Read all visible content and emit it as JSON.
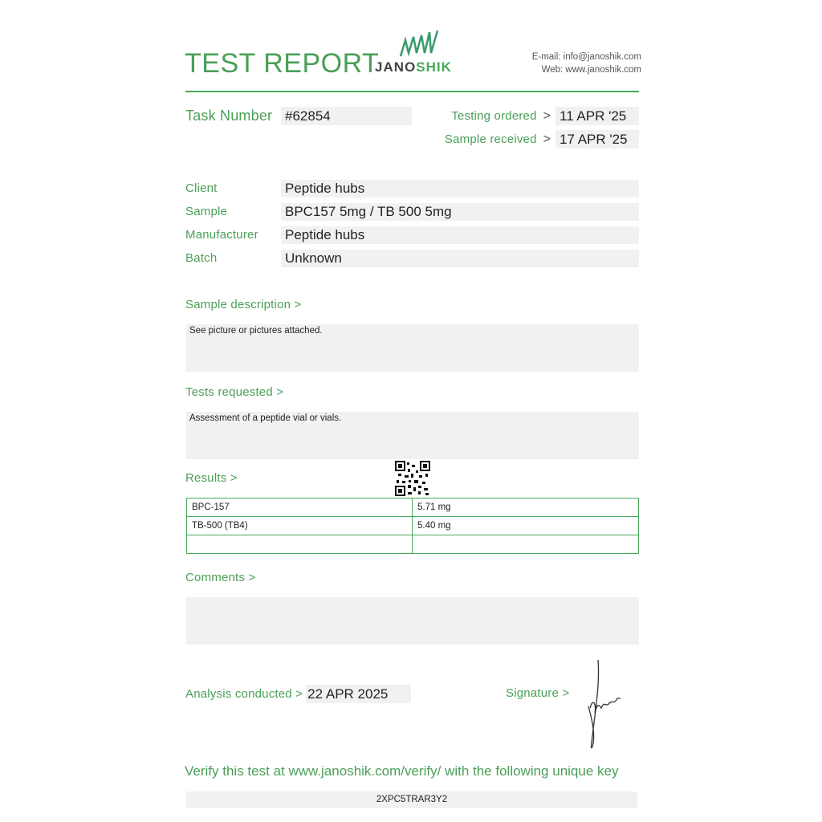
{
  "header": {
    "title": "TEST REPORT",
    "logo_text": "JANOSHIK",
    "logo_text_dark": "JANO",
    "logo_text_green": "SHIK",
    "email": "E-mail: info@janoshik.com",
    "web": "Web: www.janoshik.com",
    "accent": "#4a9f57"
  },
  "task": {
    "label": "Task Number",
    "value": "#62854"
  },
  "dates": {
    "ordered_label": "Testing ordered",
    "ordered_value": "11 APR '25",
    "received_label": "Sample received",
    "received_value": "17 APR '25",
    "arrow": ">"
  },
  "info": [
    {
      "label": "Client",
      "value": "Peptide hubs"
    },
    {
      "label": "Sample",
      "value": "BPC157 5mg / TB 500 5mg"
    },
    {
      "label": "Manufacturer",
      "value": "Peptide hubs"
    },
    {
      "label": "Batch",
      "value": "Unknown"
    }
  ],
  "sample_description": {
    "label": "Sample description >",
    "text": "See picture or pictures attached."
  },
  "tests_requested": {
    "label": "Tests requested >",
    "text": "Assessment of a peptide vial or vials."
  },
  "results": {
    "label": "Results >",
    "rows": [
      [
        "BPC-157",
        "5.71 mg"
      ],
      [
        "TB-500 (TB4)",
        "5.40 mg"
      ],
      [
        "",
        ""
      ]
    ]
  },
  "comments": {
    "label": "Comments >",
    "text": ""
  },
  "analysis": {
    "label": "Analysis conducted >",
    "value": "22 APR 2025"
  },
  "signature": {
    "label": "Signature >"
  },
  "verify": {
    "text": "Verify this test at www.janoshik.com/verify/ with the following unique key",
    "key": "2XPC5TRAR3Y2"
  }
}
